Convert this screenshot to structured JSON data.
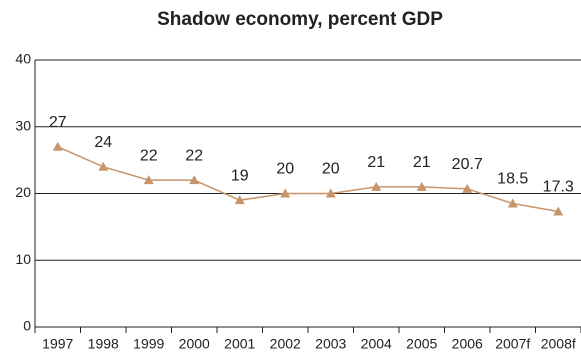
{
  "chart_data": {
    "type": "line",
    "title": "Shadow economy, percent GDP",
    "categories": [
      "1997",
      "1998",
      "1999",
      "2000",
      "2001",
      "2002",
      "2003",
      "2004",
      "2005",
      "2006",
      "2007f",
      "2008f"
    ],
    "values": [
      27,
      24,
      22,
      22,
      19,
      20,
      20,
      21,
      21,
      20.7,
      18.5,
      17.3
    ],
    "color": "#c8956a",
    "ylim": [
      0,
      40
    ],
    "yticks": [
      0,
      10,
      20,
      30,
      40
    ],
    "grid": true
  }
}
